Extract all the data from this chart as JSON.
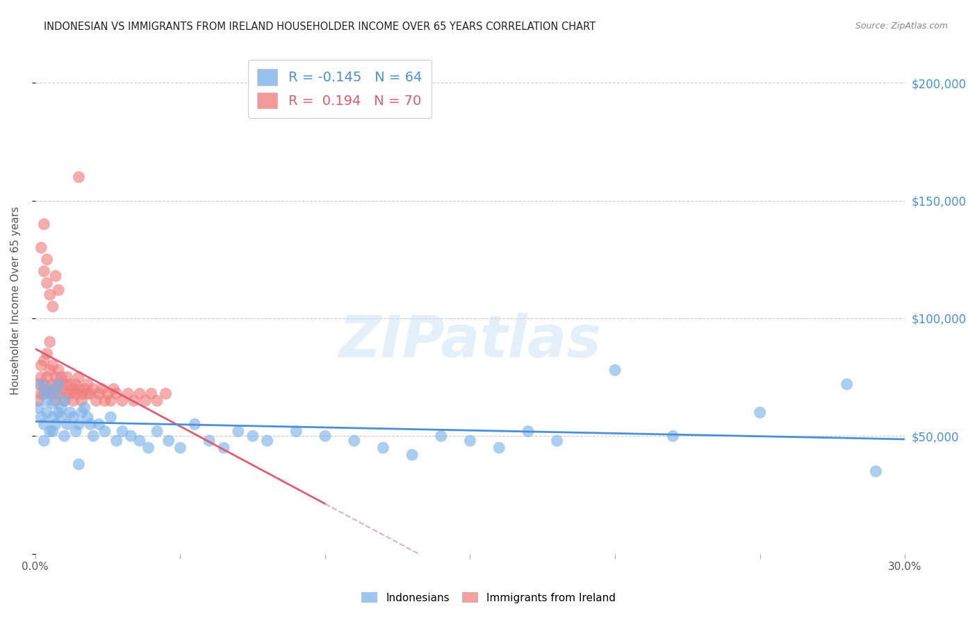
{
  "title": "INDONESIAN VS IMMIGRANTS FROM IRELAND HOUSEHOLDER INCOME OVER 65 YEARS CORRELATION CHART",
  "source": "Source: ZipAtlas.com",
  "ylabel": "Householder Income Over 65 years",
  "legend_label_1": "Indonesians",
  "legend_label_2": "Immigrants from Ireland",
  "R_indonesian": -0.145,
  "N_indonesian": 64,
  "R_ireland": 0.194,
  "N_ireland": 70,
  "y_ticks": [
    0,
    50000,
    100000,
    150000,
    200000
  ],
  "y_tick_labels": [
    "",
    "$50,000",
    "$100,000",
    "$150,000",
    "$200,000"
  ],
  "xlim": [
    0.0,
    0.3
  ],
  "ylim": [
    0,
    215000
  ],
  "color_indonesian": "#7eb3e8",
  "color_ireland": "#f08080",
  "line_color_indonesian": "#4a90d9",
  "line_color_ireland": "#e05c6e",
  "line_color_ireland_dashed": "#ddb0bc",
  "background_color": "#ffffff",
  "watermark": "ZIPatlas",
  "indonesian_x": [
    0.001,
    0.002,
    0.002,
    0.003,
    0.003,
    0.004,
    0.004,
    0.005,
    0.005,
    0.006,
    0.006,
    0.007,
    0.007,
    0.008,
    0.008,
    0.009,
    0.009,
    0.01,
    0.01,
    0.011,
    0.012,
    0.013,
    0.014,
    0.015,
    0.016,
    0.017,
    0.018,
    0.019,
    0.02,
    0.022,
    0.024,
    0.026,
    0.028,
    0.03,
    0.033,
    0.036,
    0.039,
    0.042,
    0.046,
    0.05,
    0.055,
    0.06,
    0.065,
    0.07,
    0.075,
    0.08,
    0.09,
    0.1,
    0.11,
    0.12,
    0.13,
    0.14,
    0.15,
    0.16,
    0.17,
    0.18,
    0.2,
    0.22,
    0.25,
    0.28,
    0.29,
    0.003,
    0.006,
    0.015
  ],
  "indonesian_y": [
    62000,
    58000,
    72000,
    55000,
    68000,
    60000,
    65000,
    70000,
    52000,
    58000,
    64000,
    68000,
    55000,
    60000,
    72000,
    58000,
    62000,
    65000,
    50000,
    55000,
    60000,
    58000,
    52000,
    55000,
    60000,
    62000,
    58000,
    55000,
    50000,
    55000,
    52000,
    58000,
    48000,
    52000,
    50000,
    48000,
    45000,
    52000,
    48000,
    45000,
    55000,
    48000,
    45000,
    52000,
    50000,
    48000,
    52000,
    50000,
    48000,
    45000,
    42000,
    50000,
    48000,
    45000,
    52000,
    48000,
    78000,
    50000,
    60000,
    72000,
    35000,
    48000,
    52000,
    38000
  ],
  "ireland_x": [
    0.001,
    0.001,
    0.002,
    0.002,
    0.002,
    0.003,
    0.003,
    0.003,
    0.004,
    0.004,
    0.004,
    0.005,
    0.005,
    0.005,
    0.006,
    0.006,
    0.006,
    0.007,
    0.007,
    0.007,
    0.008,
    0.008,
    0.008,
    0.009,
    0.009,
    0.01,
    0.01,
    0.011,
    0.011,
    0.012,
    0.012,
    0.013,
    0.013,
    0.014,
    0.014,
    0.015,
    0.015,
    0.016,
    0.016,
    0.017,
    0.018,
    0.018,
    0.019,
    0.02,
    0.021,
    0.022,
    0.023,
    0.024,
    0.025,
    0.026,
    0.027,
    0.028,
    0.03,
    0.032,
    0.034,
    0.036,
    0.038,
    0.04,
    0.042,
    0.045,
    0.002,
    0.003,
    0.004,
    0.005,
    0.006,
    0.003,
    0.004,
    0.007,
    0.008,
    0.015
  ],
  "ireland_y": [
    72000,
    65000,
    80000,
    68000,
    75000,
    82000,
    72000,
    68000,
    85000,
    75000,
    70000,
    90000,
    78000,
    68000,
    80000,
    72000,
    68000,
    75000,
    70000,
    65000,
    78000,
    72000,
    68000,
    75000,
    70000,
    72000,
    65000,
    75000,
    68000,
    72000,
    68000,
    70000,
    65000,
    72000,
    68000,
    75000,
    70000,
    68000,
    65000,
    70000,
    68000,
    72000,
    68000,
    70000,
    65000,
    68000,
    70000,
    65000,
    68000,
    65000,
    70000,
    68000,
    65000,
    68000,
    65000,
    68000,
    65000,
    68000,
    65000,
    68000,
    130000,
    120000,
    115000,
    110000,
    105000,
    140000,
    125000,
    118000,
    112000,
    160000
  ]
}
